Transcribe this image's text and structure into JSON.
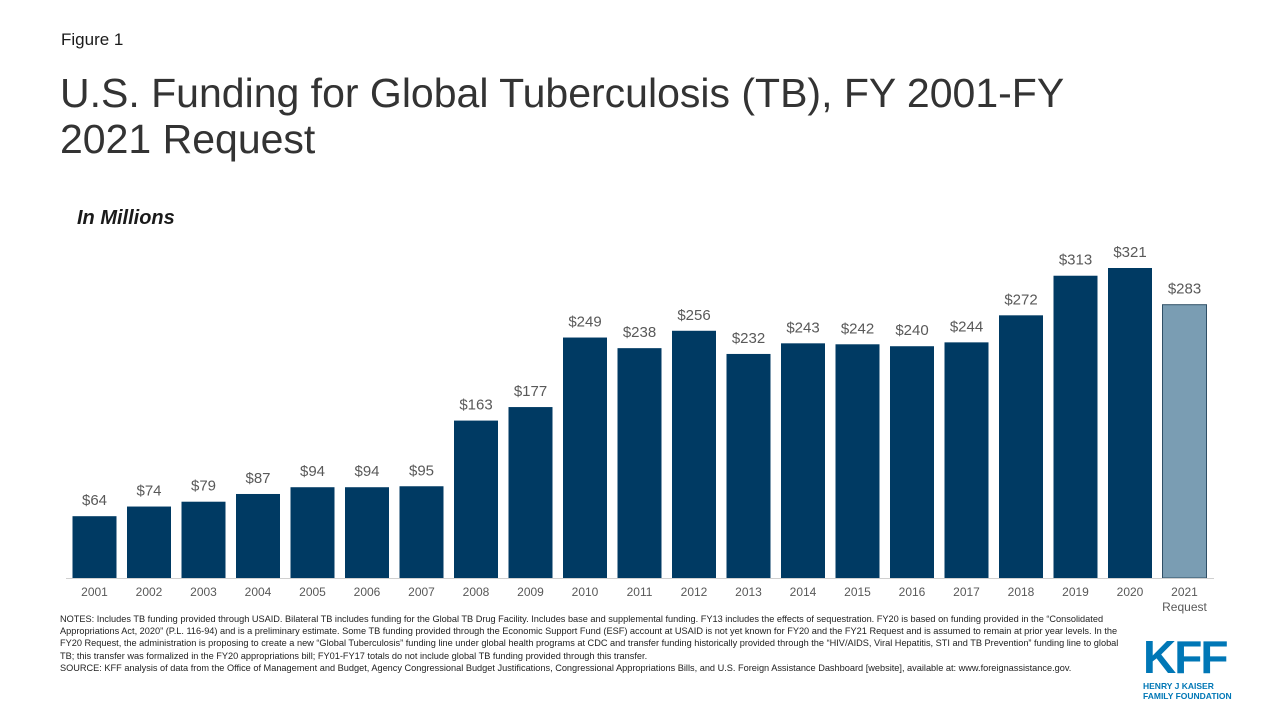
{
  "figure_label": "Figure 1",
  "title": "U.S. Funding for Global Tuberculosis (TB), FY 2001-FY 2021 Request",
  "subtitle": "In Millions",
  "colors": {
    "bar": "#003a63",
    "request_bar": "#7a9db3",
    "axis": "#d0d0d0"
  },
  "chart_data": {
    "type": "bar",
    "title": "U.S. Funding for Global Tuberculosis (TB), FY 2001-FY 2021 Request",
    "ylabel": "In Millions",
    "ylim": [
      0,
      321
    ],
    "grid": false,
    "categories": [
      "2001",
      "2002",
      "2003",
      "2004",
      "2005",
      "2006",
      "2007",
      "2008",
      "2009",
      "2010",
      "2011",
      "2012",
      "2013",
      "2014",
      "2015",
      "2016",
      "2017",
      "2018",
      "2019",
      "2020",
      "2021 Request"
    ],
    "values": [
      64,
      74,
      79,
      87,
      94,
      94,
      95,
      163,
      177,
      249,
      238,
      256,
      232,
      243,
      242,
      240,
      244,
      272,
      313,
      321,
      283
    ],
    "value_labels": [
      "$64",
      "$74",
      "$79",
      "$87",
      "$94",
      "$94",
      "$95",
      "$163",
      "$177",
      "$249",
      "$238",
      "$256",
      "$232",
      "$243",
      "$242",
      "$240",
      "$244",
      "$272",
      "$313",
      "$321",
      "$283"
    ],
    "highlighted": [
      "2021 Request"
    ]
  },
  "notes": "NOTES: Includes TB funding provided through USAID. Bilateral TB includes funding for the Global TB Drug Facility. Includes base and supplemental funding. FY13 includes the effects of sequestration. FY20 is based on funding provided in the “Consolidated Appropriations Act, 2020” (P.L. 116-94) and is a preliminary estimate. Some TB funding provided through the Economic Support Fund (ESF) account at USAID is not yet known for FY20 and the FY21 Request and is assumed to remain at prior year levels. In the FY20 Request, the administration is proposing to create a new “Global Tuberculosis” funding line under global health programs at CDC and transfer funding historically provided through the “HIV/AIDS, Viral Hepatitis, STI and TB Prevention” funding line to global TB; this transfer was formalized in the FY20 appropriations bill; FY01-FY17 totals do not include global TB funding provided through this transfer.",
  "source": "SOURCE: KFF analysis of data from the Office of Management and Budget, Agency Congressional Budget Justifications, Congressional Appropriations Bills, and U.S. Foreign Assistance Dashboard [website], available at: www.foreignassistance.gov.",
  "logo": {
    "mark": "KFF",
    "line1": "HENRY J KAISER",
    "line2": "FAMILY FOUNDATION"
  }
}
